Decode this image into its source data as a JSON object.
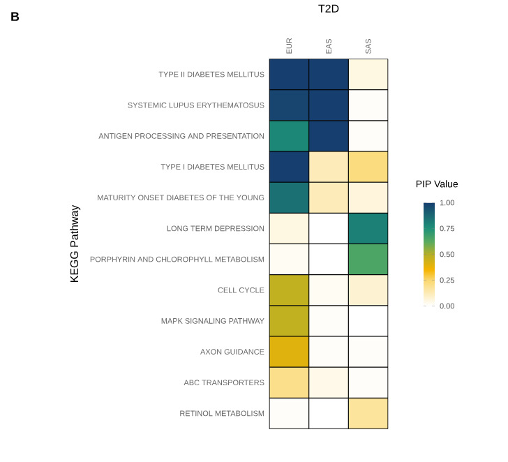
{
  "chart_data": {
    "type": "heatmap",
    "title": "T2D",
    "ylabel": "KEGG Pathway",
    "clabel": "PIP Value",
    "annotations": [
      "B"
    ],
    "categories": [
      "EUR",
      "EAS",
      "SAS"
    ],
    "y_categories": [
      "TYPE II DIABETES MELLITUS",
      "SYSTEMIC LUPUS ERYTHEMATOSUS",
      "ANTIGEN PROCESSING AND PRESENTATION",
      "TYPE I DIABETES MELLITUS",
      "MATURITY ONSET DIABETES OF THE YOUNG",
      "LONG TERM DEPRESSION",
      "PORPHYRIN AND CHLOROPHYLL METABOLISM",
      "CELL CYCLE",
      "MAPK SIGNALING PATHWAY",
      "AXON GUIDANCE",
      "ABC TRANSPORTERS",
      "RETINOL METABOLISM"
    ],
    "cells": [
      [
        1.0,
        1.0,
        0.05
      ],
      [
        0.98,
        1.0,
        0.01
      ],
      [
        0.78,
        1.0,
        0.01
      ],
      [
        1.0,
        0.12,
        0.22
      ],
      [
        0.85,
        0.12,
        0.06
      ],
      [
        0.05,
        0.0,
        0.8
      ],
      [
        0.02,
        0.0,
        0.65
      ],
      [
        0.47,
        0.02,
        0.08
      ],
      [
        0.47,
        0.01,
        0.0
      ],
      [
        0.4,
        0.01,
        0.01
      ],
      [
        0.2,
        0.04,
        0.01
      ],
      [
        0.01,
        0.0,
        0.17
      ]
    ],
    "clim": [
      0,
      1
    ],
    "cticks": [
      {
        "value": 0,
        "label": "0.00"
      },
      {
        "value": 0.25,
        "label": "0.25"
      },
      {
        "value": 0.5,
        "label": "0.50"
      },
      {
        "value": 0.75,
        "label": "0.75"
      },
      {
        "value": 1,
        "label": "1.00"
      }
    ]
  }
}
